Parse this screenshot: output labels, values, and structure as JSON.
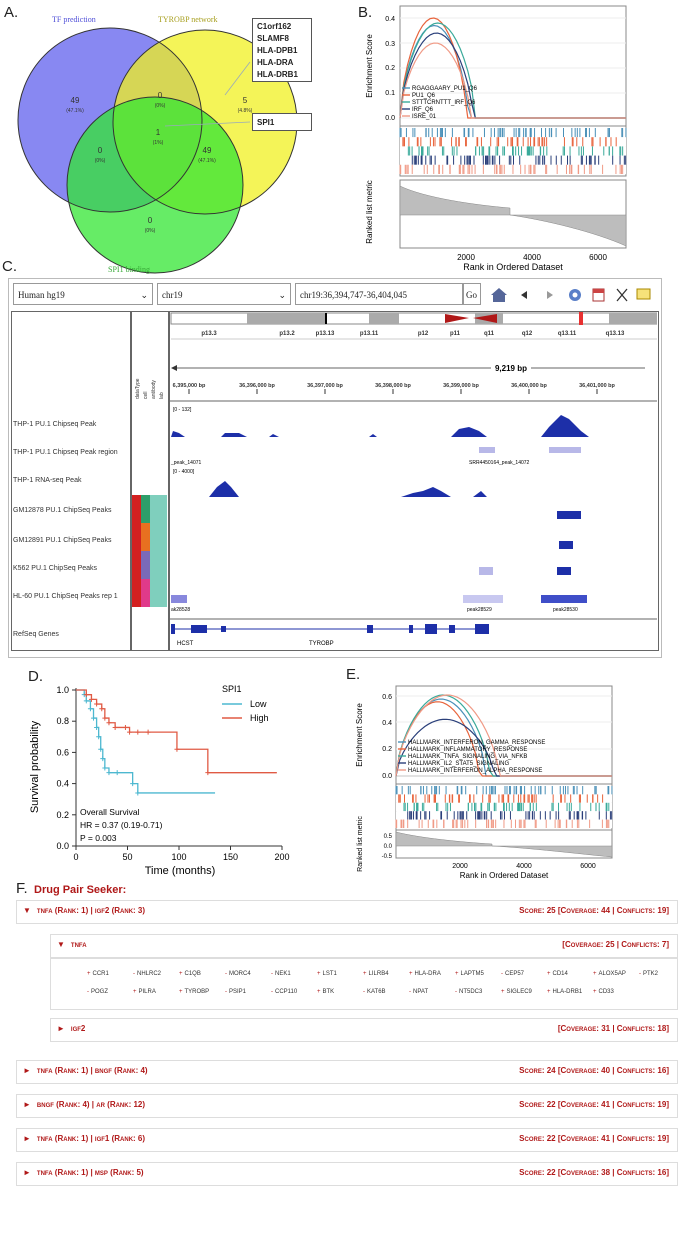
{
  "panelA": {
    "label": "A.",
    "title_tf": "TF prediction",
    "title_tyrobp": "TYROBP network",
    "title_spi1": "SPI1 binding",
    "regions": [
      {
        "count": "49",
        "pct": "(47.1%)"
      },
      {
        "count": "0",
        "pct": "(0%)"
      },
      {
        "count": "5",
        "pct": "(4.8%)"
      },
      {
        "count": "1",
        "pct": "(1%)"
      },
      {
        "count": "0",
        "pct": "(0%)"
      },
      {
        "count": "49",
        "pct": "(47.1%)"
      },
      {
        "count": "0",
        "pct": "(0%)"
      }
    ],
    "box_genes": [
      "C1orf162",
      "SLAMF8",
      "HLA-DPB1",
      "HLA-DRA",
      "HLA-DRB1"
    ],
    "box_spi1": "SPI1"
  },
  "panelB": {
    "label": "B.",
    "ylabel": "Enrichment Score",
    "ylabel2": "Ranked list metric",
    "xlabel": "Rank in Ordered Dataset",
    "yticks": [
      "0.4",
      "0.3",
      "0.2",
      "0.1",
      "0.0"
    ],
    "xticks": [
      "2000",
      "4000",
      "6000"
    ],
    "legend": [
      "RGAGGAARY_PU1_Q6",
      "PU1_Q6",
      "STTTCRNTTT_IRF_Q6",
      "IRF_Q6",
      "ISRE_01"
    ],
    "colors": [
      "#4a90b8",
      "#e8643c",
      "#3aaa9a",
      "#2a3f7a",
      "#f09a86"
    ]
  },
  "panelC": {
    "label": "C.",
    "genome": "Human hg19",
    "chrom": "chr19",
    "locus": "chr19:36,394,747-36,404,045",
    "go": "Go",
    "bands": [
      "p13.3",
      "p13.2",
      "p13.13",
      "p13.11",
      "p12",
      "p11",
      "q11",
      "q12",
      "q13.11",
      "q13.13"
    ],
    "span": "9,219 bp",
    "positions": [
      "6,395,000 bp",
      "36,396,000 bp",
      "36,397,000 bp",
      "36,398,000 bp",
      "36,399,000 bp",
      "36,400,000 bp",
      "36,401,000 bp"
    ],
    "col_headers": [
      "dataType",
      "cell",
      "antibody",
      "lab"
    ],
    "tracks": [
      "THP-1 PU.1 Chipseq Peak",
      "THP-1 PU.1 Chipseq Peak region",
      "THP-1 RNA-seq Peak",
      "GM12878 PU.1 ChipSeq Peaks",
      "GM12891 PU.1 ChipSeq Peaks",
      "K562 PU.1 ChipSeq Peaks",
      "HL-60 PU.1 ChipSeq Peaks rep 1",
      "RefSeq Genes"
    ],
    "range1": "[0 - 132]",
    "range2": "[0 - 4000]",
    "peak_labels": [
      "_peak_14071",
      "SRR4450164_peak_14072",
      "ak28528",
      "peak28529",
      "peak28530"
    ],
    "genes": [
      "HCST",
      "TYROBP"
    ]
  },
  "panelD": {
    "label": "D.",
    "chart_data": {
      "type": "line",
      "xlabel": "Time (months)",
      "ylabel": "Survival probability",
      "xticks": [
        0,
        50,
        100,
        150,
        200
      ],
      "yticks": [
        0.0,
        0.2,
        0.4,
        0.6,
        0.8,
        1.0
      ],
      "legend_title": "SPI1",
      "series": [
        {
          "name": "Low",
          "color": "#4db8d0",
          "x": [
            0,
            8,
            10,
            14,
            17,
            20,
            22,
            24,
            26,
            28,
            32,
            40,
            55,
            60,
            135
          ],
          "y": [
            1.0,
            0.97,
            0.93,
            0.88,
            0.82,
            0.76,
            0.7,
            0.62,
            0.56,
            0.5,
            0.47,
            0.47,
            0.4,
            0.34,
            0.34
          ]
        },
        {
          "name": "High",
          "color": "#e05a44",
          "x": [
            0,
            10,
            15,
            20,
            25,
            28,
            32,
            38,
            48,
            52,
            60,
            70,
            98,
            128,
            195
          ],
          "y": [
            1.0,
            0.97,
            0.94,
            0.91,
            0.88,
            0.82,
            0.79,
            0.76,
            0.76,
            0.73,
            0.73,
            0.73,
            0.62,
            0.47,
            0.47
          ]
        }
      ],
      "annotations": [
        "Overall Survival",
        "HR = 0.37 (0.19-0.71)",
        "P = 0.003"
      ]
    }
  },
  "panelE": {
    "label": "E.",
    "ylabel": "Enrichment Score",
    "ylabel2": "Ranked list metric",
    "xlabel": "Rank in Ordered Dataset",
    "yticks": [
      "0.6",
      "0.4",
      "0.2",
      "0.0"
    ],
    "yticks2": [
      "0.5",
      "0.0",
      "-0.5"
    ],
    "xticks": [
      "2000",
      "4000",
      "6000"
    ],
    "legend": [
      "HALLMARK_INTERFERON_GAMMA_RESPONSE",
      "HALLMARK_INFLAMMATORY_RESPONSE",
      "HALLMARK_TNFA_SIGNALING_VIA_NFKB",
      "HALLMARK_IL2_STAT5_SIGNALING",
      "HALLMARK_INTERFERON_ALPHA_RESPONSE"
    ],
    "colors": [
      "#4a90b8",
      "#e8643c",
      "#3aaa9a",
      "#2a3f7a",
      "#f09a86"
    ]
  },
  "panelF": {
    "label": "F.",
    "title": "Drug Pair Seeker:",
    "rows": [
      {
        "left": "tnfa (Rank: 1) | igf2 (Rank: 3)",
        "right": "Score: 25 [Coverage: 44 | Conflicts: 19]",
        "tri": "▼"
      },
      {
        "left": "tnfa",
        "right": "[Coverage: 25 | Conflicts: 7]",
        "tri": "▼"
      },
      {
        "left": "igf2",
        "right": "[Coverage: 31 | Conflicts: 18]",
        "tri": "►"
      },
      {
        "left": "tnfa (Rank: 1) | bngf (Rank: 4)",
        "right": "Score: 24 [Coverage: 40 | Conflicts: 16]",
        "tri": "►"
      },
      {
        "left": "bngf (Rank: 4) | ar (Rank: 12)",
        "right": "Score: 22 [Coverage: 41 | Conflicts: 19]",
        "tri": "►"
      },
      {
        "left": "tnfa (Rank: 1) | igf1 (Rank: 6)",
        "right": "Score: 22 [Coverage: 41 | Conflicts: 19]",
        "tri": "►"
      },
      {
        "left": "tnfa (Rank: 1) | msp (Rank: 5)",
        "right": "Score: 22 [Coverage: 38 | Conflicts: 16]",
        "tri": "►"
      }
    ],
    "genes_row1": [
      [
        "+",
        "CCR1"
      ],
      [
        "-",
        "NHLRC2"
      ],
      [
        "+",
        "C1QB"
      ],
      [
        "-",
        "MORC4"
      ],
      [
        "-",
        "NEK1"
      ],
      [
        "+",
        "LST1"
      ],
      [
        "+",
        "LILRB4"
      ],
      [
        "+",
        "HLA-DRA"
      ],
      [
        "+",
        "LAPTM5"
      ],
      [
        "-",
        "CEP57"
      ],
      [
        "+",
        "CD14"
      ],
      [
        "+",
        "ALOX5AP"
      ],
      [
        "-",
        "PTK2"
      ]
    ],
    "genes_row2": [
      [
        "-",
        "POGZ"
      ],
      [
        "+",
        "PILRA"
      ],
      [
        "+",
        "TYROBP"
      ],
      [
        "-",
        "PSIP1"
      ],
      [
        "-",
        "CCP110"
      ],
      [
        "+",
        "BTK"
      ],
      [
        "-",
        "KAT6B"
      ],
      [
        "-",
        "NPAT"
      ],
      [
        "-",
        "NT5DC3"
      ],
      [
        "+",
        "SIGLEC9"
      ],
      [
        "+",
        "HLA-DRB1"
      ],
      [
        "+",
        "CD33"
      ]
    ]
  }
}
